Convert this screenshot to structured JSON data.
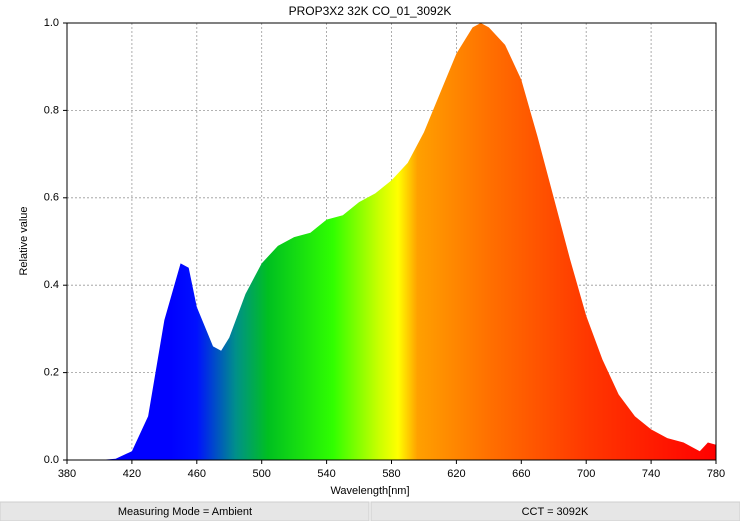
{
  "chart_data": {
    "type": "area",
    "title": "PROP3X2 32K CO_01_3092K",
    "x_label": "Wavelength[nm]",
    "y_label": "Relative value",
    "x": [
      380,
      390,
      400,
      410,
      420,
      430,
      440,
      450,
      455,
      460,
      470,
      475,
      480,
      490,
      500,
      510,
      520,
      530,
      540,
      550,
      560,
      570,
      580,
      590,
      600,
      610,
      620,
      630,
      635,
      640,
      650,
      660,
      670,
      680,
      690,
      700,
      710,
      720,
      730,
      740,
      750,
      760,
      770,
      775,
      780
    ],
    "values": [
      0,
      0,
      0,
      0.003,
      0.02,
      0.1,
      0.32,
      0.45,
      0.44,
      0.35,
      0.26,
      0.25,
      0.28,
      0.38,
      0.45,
      0.49,
      0.51,
      0.52,
      0.55,
      0.56,
      0.59,
      0.61,
      0.64,
      0.68,
      0.75,
      0.84,
      0.93,
      0.99,
      1.0,
      0.99,
      0.95,
      0.87,
      0.74,
      0.6,
      0.46,
      0.33,
      0.23,
      0.15,
      0.1,
      0.07,
      0.05,
      0.04,
      0.02,
      0.04,
      0.035
    ],
    "xlim": [
      380,
      780
    ],
    "xticks": [
      380,
      420,
      460,
      500,
      540,
      580,
      620,
      660,
      700,
      740,
      780
    ],
    "ylim": [
      0,
      1
    ],
    "yticks": [
      {
        "value": 0,
        "label": "0.0"
      },
      0.2,
      0.4,
      0.6,
      0.8,
      {
        "value": 1,
        "label": "1.0"
      }
    ],
    "grid": true
  },
  "footer": [
    "Measuring Mode = Ambient",
    "CCT = 3092K"
  ]
}
